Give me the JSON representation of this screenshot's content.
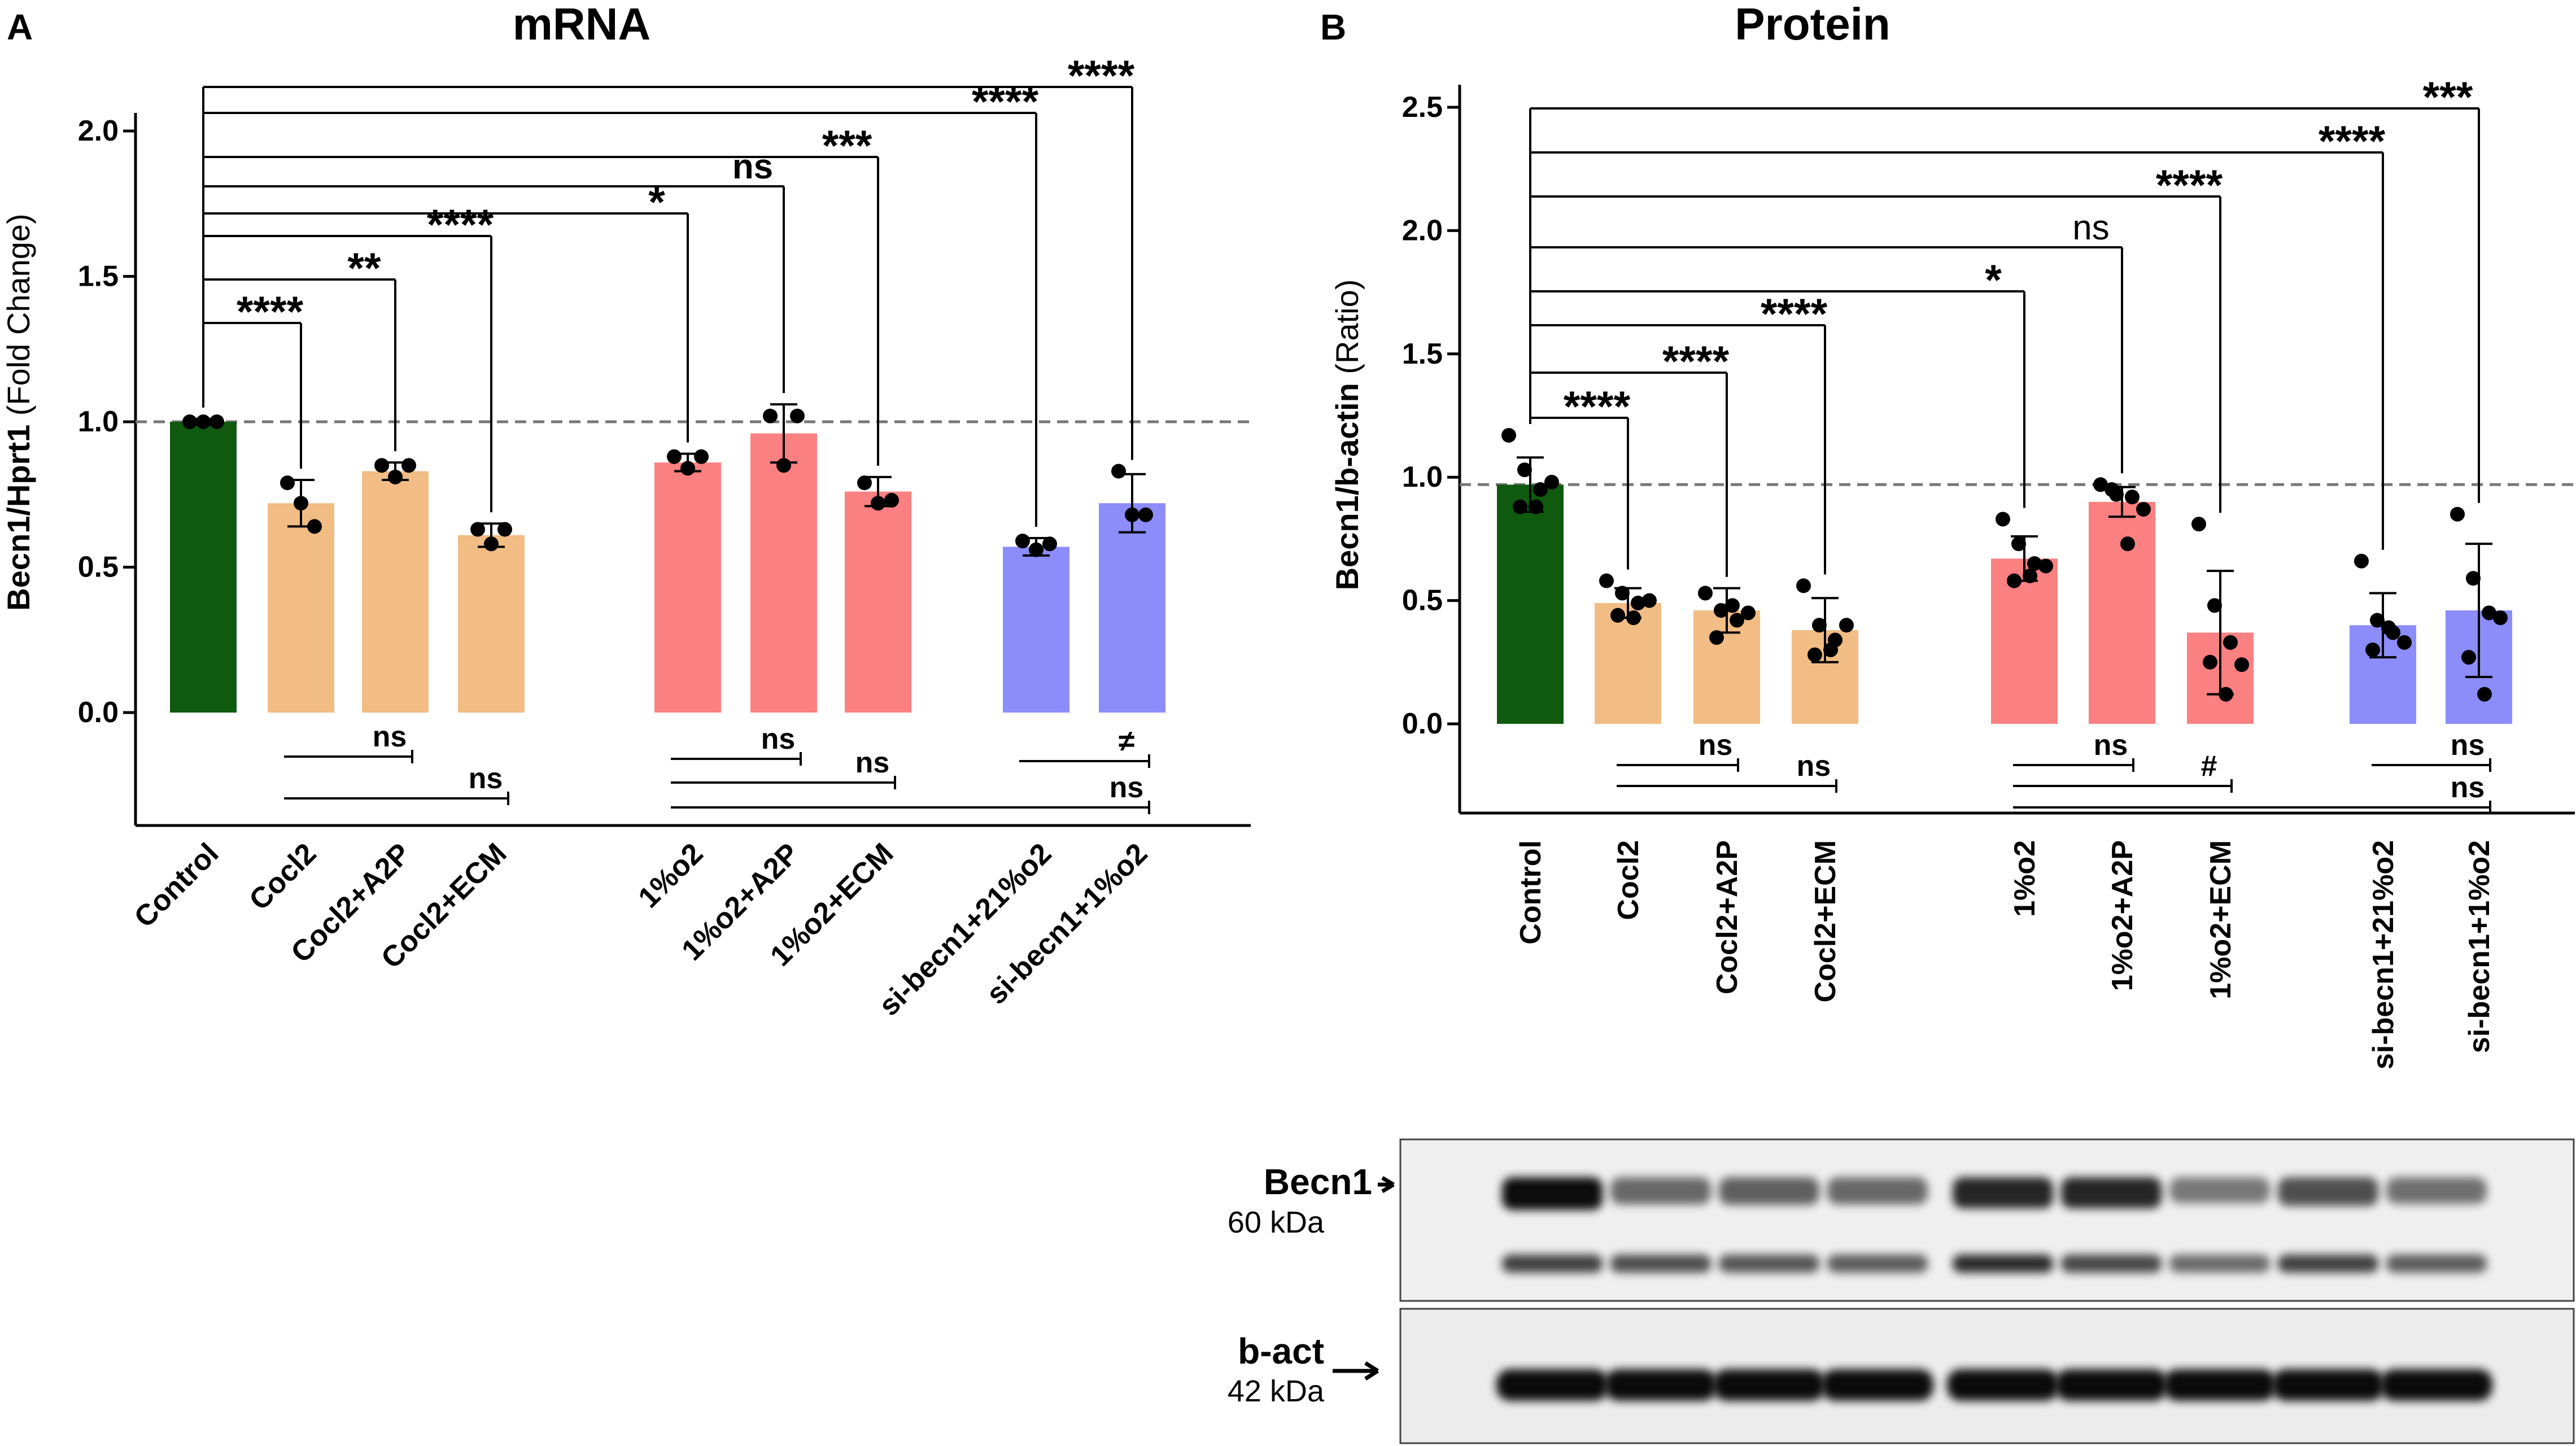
{
  "panel_a": {
    "letter": "A",
    "title": "mRNA",
    "ylabel_bold": "Becn1/Hprt1",
    "ylabel_normal": " (Fold Change)"
  },
  "panel_b": {
    "letter": "B",
    "title": "Protein",
    "ylabel_bold": "Becn1/b-actin",
    "ylabel_normal": " (Ratio)"
  },
  "colors": {
    "control": "#0f5a0f",
    "cocl2": "#f2bc85",
    "hypoxia": "#fa8081",
    "sirna": "#8c8cfa"
  },
  "western_blot": {
    "becn1_label": "Becn1",
    "becn1_size": "60 kDa",
    "bact_label": "b-act",
    "bact_size": "42 kDa"
  },
  "chart_data": [
    {
      "type": "bar",
      "title": "mRNA",
      "ylabel": "Becn1/Hprt1 (Fold Change)",
      "ylim": [
        0,
        2.0
      ],
      "yticks": [
        "0.0",
        "0.5",
        "1.0",
        "1.5",
        "2.0"
      ],
      "reference_line": 1.0,
      "categories": [
        "Control",
        "Cocl2",
        "Cocl2+A2P",
        "Cocl2+ECM",
        "1%o2",
        "1%o2+A2P",
        "1%o2+ECM",
        "si-becn1+21%o2",
        "si-becn1+1%o2"
      ],
      "values": [
        1.0,
        0.72,
        0.83,
        0.61,
        0.86,
        0.96,
        0.76,
        0.57,
        0.72
      ],
      "errors": [
        0.01,
        0.08,
        0.03,
        0.04,
        0.03,
        0.1,
        0.05,
        0.03,
        0.1
      ],
      "points": [
        [
          1.0,
          1.0,
          1.0
        ],
        [
          0.79,
          0.72,
          0.64
        ],
        [
          0.85,
          0.81,
          0.85
        ],
        [
          0.63,
          0.58,
          0.63
        ],
        [
          0.88,
          0.84,
          0.88
        ],
        [
          1.02,
          0.85,
          1.02
        ],
        [
          0.79,
          0.72,
          0.73
        ],
        [
          0.59,
          0.56,
          0.58
        ],
        [
          0.83,
          0.68,
          0.68
        ]
      ],
      "groups": [
        "control",
        "cocl2",
        "cocl2",
        "cocl2",
        "hypoxia",
        "hypoxia",
        "hypoxia",
        "sirna",
        "sirna"
      ],
      "comparisons_vs_control": [
        {
          "target": "Cocl2",
          "label": "****"
        },
        {
          "target": "Cocl2+A2P",
          "label": "**"
        },
        {
          "target": "Cocl2+ECM",
          "label": "****"
        },
        {
          "target": "1%o2",
          "label": "*"
        },
        {
          "target": "1%o2+A2P",
          "label": "ns"
        },
        {
          "target": "1%o2+ECM",
          "label": "***"
        },
        {
          "target": "si-becn1+21%o2",
          "label": "****"
        },
        {
          "target": "si-becn1+1%o2",
          "label": "****"
        }
      ],
      "lower_comparisons": [
        {
          "from": "Cocl2",
          "to": "Cocl2+A2P",
          "label": "ns"
        },
        {
          "from": "Cocl2",
          "to": "Cocl2+ECM",
          "label": "ns"
        },
        {
          "from": "1%o2",
          "to": "1%o2+A2P",
          "label": "ns"
        },
        {
          "from": "1%o2",
          "to": "1%o2+ECM",
          "label": "ns"
        },
        {
          "from": "si-becn1+21%o2",
          "to": "si-becn1+1%o2",
          "label": "≠"
        },
        {
          "from": "1%o2",
          "to": "si-becn1+1%o2",
          "label": "ns"
        }
      ]
    },
    {
      "type": "bar",
      "title": "Protein",
      "ylabel": "Becn1/b-actin (Ratio)",
      "ylim": [
        0,
        2.5
      ],
      "yticks": [
        "0.0",
        "0.5",
        "1.0",
        "1.5",
        "2.0",
        "2.5"
      ],
      "reference_line": 0.97,
      "categories": [
        "Control",
        "Cocl2",
        "Cocl2+A2P",
        "Cocl2+ECM",
        "1%o2",
        "1%o2+A2P",
        "1%o2+ECM",
        "si-becn1+21%o2",
        "si-becn1+1%o2"
      ],
      "values": [
        0.97,
        0.49,
        0.46,
        0.38,
        0.67,
        0.9,
        0.37,
        0.4,
        0.46
      ],
      "errors": [
        0.11,
        0.06,
        0.09,
        0.13,
        0.09,
        0.06,
        0.25,
        0.13,
        0.27
      ],
      "points": [
        [
          1.17,
          1.03,
          0.95,
          0.88,
          0.88,
          0.98
        ],
        [
          0.58,
          0.53,
          0.49,
          0.44,
          0.43,
          0.5
        ],
        [
          0.53,
          0.46,
          0.42,
          0.35,
          0.48,
          0.45
        ],
        [
          0.56,
          0.4,
          0.34,
          0.28,
          0.3,
          0.4
        ],
        [
          0.83,
          0.73,
          0.65,
          0.58,
          0.6,
          0.64
        ],
        [
          0.97,
          0.93,
          0.92,
          0.95,
          0.73,
          0.87
        ],
        [
          0.81,
          0.48,
          0.33,
          0.25,
          0.12,
          0.24
        ],
        [
          0.66,
          0.42,
          0.37,
          0.3,
          0.39,
          0.33
        ],
        [
          0.85,
          0.59,
          0.45,
          0.27,
          0.12,
          0.43
        ]
      ],
      "groups": [
        "control",
        "cocl2",
        "cocl2",
        "cocl2",
        "hypoxia",
        "hypoxia",
        "hypoxia",
        "sirna",
        "sirna"
      ],
      "comparisons_vs_control": [
        {
          "target": "Cocl2",
          "label": "****"
        },
        {
          "target": "Cocl2+A2P",
          "label": "****"
        },
        {
          "target": "Cocl2+ECM",
          "label": "****"
        },
        {
          "target": "1%o2",
          "label": "*"
        },
        {
          "target": "1%o2+A2P",
          "label": "ns"
        },
        {
          "target": "1%o2+ECM",
          "label": "****"
        },
        {
          "target": "si-becn1+21%o2",
          "label": "****"
        },
        {
          "target": "si-becn1+1%o2",
          "label": "***"
        }
      ],
      "lower_comparisons": [
        {
          "from": "Cocl2",
          "to": "Cocl2+A2P",
          "label": "ns"
        },
        {
          "from": "Cocl2",
          "to": "Cocl2+ECM",
          "label": "ns"
        },
        {
          "from": "1%o2",
          "to": "1%o2+A2P",
          "label": "ns"
        },
        {
          "from": "1%o2",
          "to": "1%o2+ECM",
          "label": "#"
        },
        {
          "from": "si-becn1+21%o2",
          "to": "si-becn1+1%o2",
          "label": "ns"
        },
        {
          "from": "1%o2",
          "to": "si-becn1+1%o2",
          "label": "ns"
        }
      ]
    }
  ]
}
